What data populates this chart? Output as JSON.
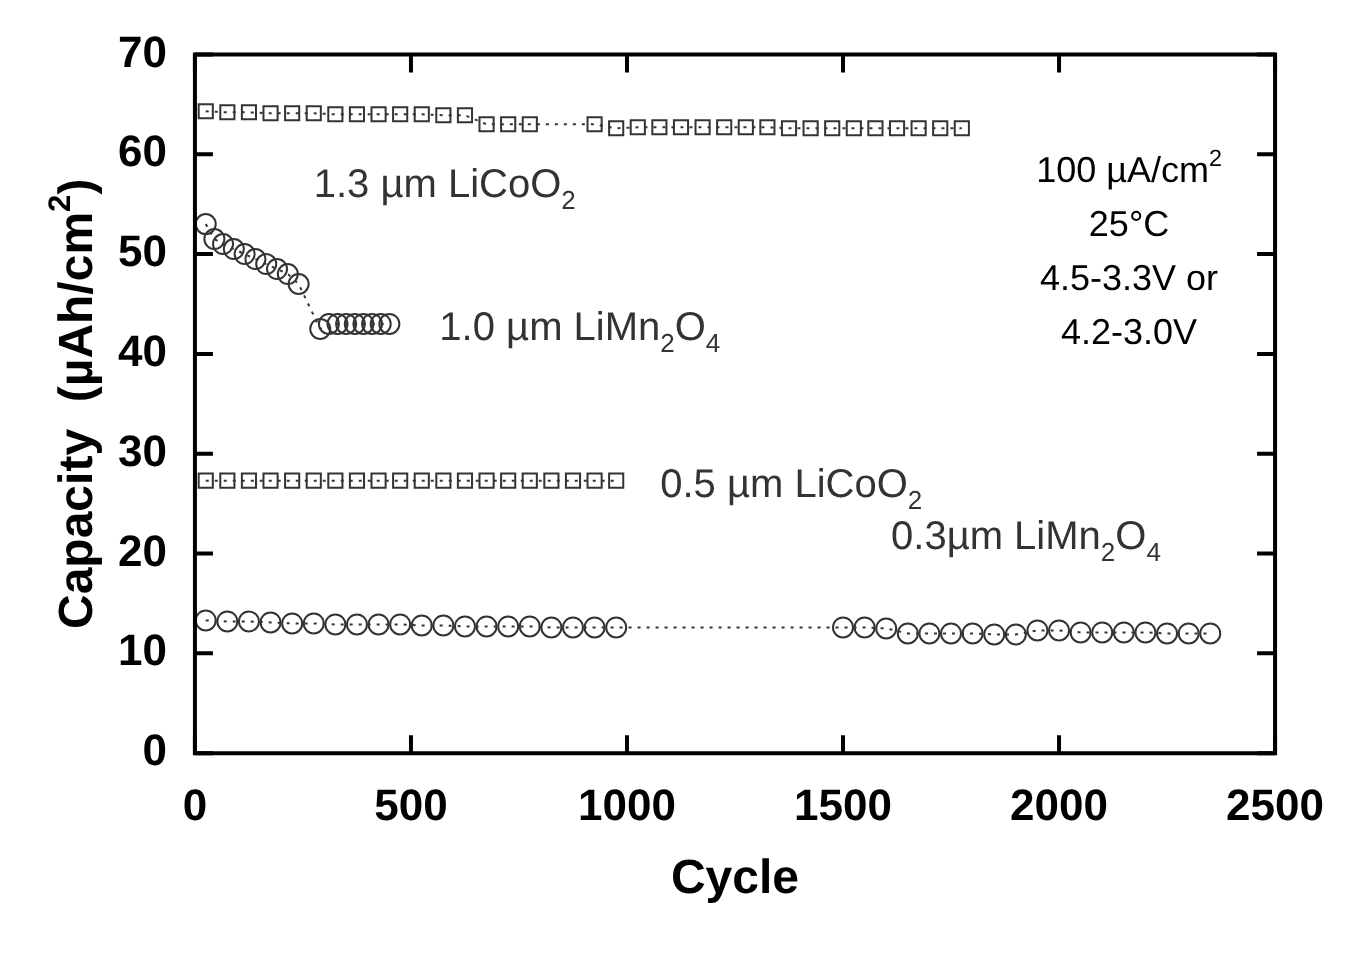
{
  "chart_data": {
    "type": "line",
    "xlabel": "Cycle",
    "ylabel": "Capacity  (µAh/cm$^{2}$)",
    "xlim": [
      0,
      2500
    ],
    "ylim": [
      0,
      70
    ],
    "xticks": [
      0,
      500,
      1000,
      1500,
      2000,
      2500
    ],
    "yticks": [
      0,
      10,
      20,
      30,
      40,
      50,
      60,
      70
    ],
    "grid": false,
    "legend": false,
    "annotations": [
      "100 µA/cm$^{2}$",
      "25°C",
      "4.5-3.3V or",
      "4.2-3.0V"
    ],
    "series": [
      {
        "name": "1.3 µm LiCoO$_{2}$",
        "color": "#333333",
        "marker": "square",
        "line_style": "dotted",
        "x": [
          25,
          75,
          125,
          175,
          225,
          275,
          325,
          375,
          425,
          475,
          525,
          575,
          625,
          675,
          725,
          775,
          925,
          975,
          1025,
          1075,
          1125,
          1175,
          1225,
          1275,
          1325,
          1375,
          1425,
          1475,
          1525,
          1575,
          1625,
          1675,
          1725,
          1775
        ],
        "values": [
          64.3,
          64.2,
          64.2,
          64.1,
          64.1,
          64.1,
          64,
          64,
          64,
          64,
          64,
          63.9,
          63.9,
          63,
          63,
          63,
          63,
          62.6,
          62.7,
          62.7,
          62.7,
          62.7,
          62.7,
          62.7,
          62.7,
          62.6,
          62.6,
          62.6,
          62.6,
          62.6,
          62.6,
          62.6,
          62.6,
          62.6
        ]
      },
      {
        "name": "1.0 µm LiMn$_{2}$O$_{4}$",
        "color": "#333333",
        "marker": "circle",
        "line_style": "dotted",
        "x": [
          25,
          45,
          65,
          90,
          115,
          140,
          165,
          190,
          215,
          240,
          290,
          310,
          330,
          350,
          370,
          390,
          410,
          430,
          450
        ],
        "values": [
          53,
          51.5,
          51,
          50.5,
          50,
          49.5,
          49,
          48.5,
          48,
          47,
          42.5,
          43,
          43,
          43,
          43,
          43,
          43,
          43,
          43
        ]
      },
      {
        "name": "0.5 µm LiCoO$_{2}$",
        "color": "#333333",
        "marker": "square",
        "line_style": "dotted",
        "x": [
          25,
          75,
          125,
          175,
          225,
          275,
          325,
          375,
          425,
          475,
          525,
          575,
          625,
          675,
          725,
          775,
          825,
          875,
          925,
          975
        ],
        "values": [
          27.3,
          27.3,
          27.3,
          27.3,
          27.3,
          27.3,
          27.3,
          27.3,
          27.3,
          27.3,
          27.3,
          27.3,
          27.3,
          27.3,
          27.3,
          27.3,
          27.3,
          27.3,
          27.3,
          27.3
        ]
      },
      {
        "name": "0.3µm LiMn$_{2}$O$_{4}$",
        "color": "#333333",
        "marker": "circle",
        "line_style": "dotted",
        "x": [
          25,
          75,
          125,
          175,
          225,
          275,
          325,
          375,
          425,
          475,
          525,
          575,
          625,
          675,
          725,
          775,
          825,
          875,
          925,
          975,
          1500,
          1550,
          1600,
          1650,
          1700,
          1750,
          1800,
          1850,
          1900,
          1950,
          2000,
          2050,
          2100,
          2150,
          2200,
          2250,
          2300,
          2350
        ],
        "values": [
          13.3,
          13.2,
          13.2,
          13.1,
          13,
          13,
          12.9,
          12.9,
          12.9,
          12.9,
          12.8,
          12.8,
          12.7,
          12.7,
          12.7,
          12.7,
          12.6,
          12.6,
          12.6,
          12.6,
          12.6,
          12.6,
          12.5,
          12,
          12,
          12,
          12,
          11.9,
          11.9,
          12.3,
          12.3,
          12.1,
          12.1,
          12.1,
          12.1,
          12,
          12,
          12
        ]
      }
    ]
  }
}
